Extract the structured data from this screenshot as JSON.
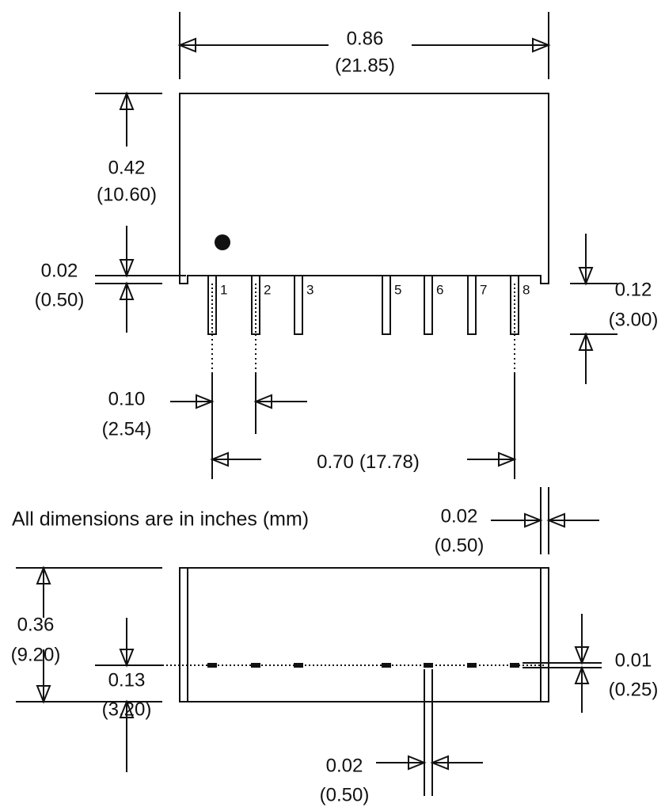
{
  "dimensions": [
    {
      "inches": "0.86",
      "mm": "(21.85)"
    },
    {
      "inches": "0.42",
      "mm": "(10.60)"
    },
    {
      "inches": "0.02",
      "mm": "(0.50)"
    },
    {
      "inches": "0.12",
      "mm": "(3.00)"
    },
    {
      "inches": "0.10",
      "mm": "(2.54)"
    },
    {
      "inches": "0.70",
      "mm": "(17.78)"
    },
    {
      "inches": "0.02",
      "mm": "(0.50)"
    },
    {
      "inches": "0.36",
      "mm": "(9.20)"
    },
    {
      "inches": "0.13",
      "mm": "(3.20)"
    },
    {
      "inches": "0.01",
      "mm": "(0.25)"
    },
    {
      "inches": "0.02",
      "mm": "(0.50)"
    }
  ],
  "pins": [
    "1",
    "2",
    "3",
    "5",
    "6",
    "7",
    "8"
  ],
  "note": "All dimensions are in inches (mm)"
}
